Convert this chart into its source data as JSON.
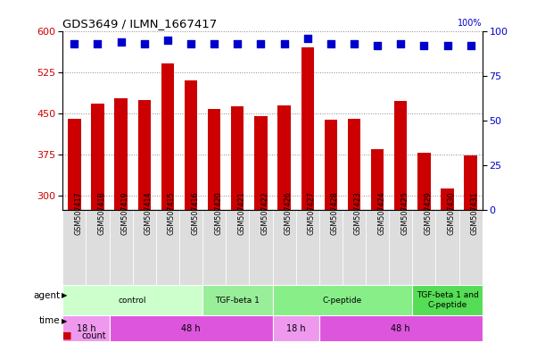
{
  "title": "GDS3649 / ILMN_1667417",
  "samples": [
    "GSM507417",
    "GSM507418",
    "GSM507419",
    "GSM507414",
    "GSM507415",
    "GSM507416",
    "GSM507420",
    "GSM507421",
    "GSM507422",
    "GSM507426",
    "GSM507427",
    "GSM507428",
    "GSM507423",
    "GSM507424",
    "GSM507425",
    "GSM507429",
    "GSM507430",
    "GSM507431"
  ],
  "counts": [
    440,
    468,
    478,
    475,
    540,
    510,
    458,
    463,
    445,
    465,
    570,
    438,
    440,
    385,
    472,
    378,
    313,
    373
  ],
  "percentile_ranks": [
    93,
    93,
    94,
    93,
    95,
    93,
    93,
    93,
    93,
    93,
    96,
    93,
    93,
    92,
    93,
    92,
    92,
    92
  ],
  "ylim_left": [
    275,
    600
  ],
  "ylim_right": [
    0,
    100
  ],
  "yticks_left": [
    300,
    375,
    450,
    525,
    600
  ],
  "yticks_right": [
    0,
    25,
    50,
    75,
    100
  ],
  "bar_color": "#CC0000",
  "dot_color": "#0000CC",
  "agent_groups": [
    {
      "label": "control",
      "start": 0,
      "end": 6,
      "color": "#CCFFCC"
    },
    {
      "label": "TGF-beta 1",
      "start": 6,
      "end": 9,
      "color": "#99EE99"
    },
    {
      "label": "C-peptide",
      "start": 9,
      "end": 15,
      "color": "#88EE88"
    },
    {
      "label": "TGF-beta 1 and\nC-peptide",
      "start": 15,
      "end": 18,
      "color": "#55DD55"
    }
  ],
  "time_groups": [
    {
      "label": "18 h",
      "start": 0,
      "end": 2,
      "color": "#EE99EE"
    },
    {
      "label": "48 h",
      "start": 2,
      "end": 9,
      "color": "#DD55DD"
    },
    {
      "label": "18 h",
      "start": 9,
      "end": 11,
      "color": "#EE99EE"
    },
    {
      "label": "48 h",
      "start": 11,
      "end": 18,
      "color": "#DD55DD"
    }
  ],
  "bar_width": 0.55,
  "dot_size": 35,
  "tick_label_fontsize": 6.5,
  "grid_color": "#888888",
  "xlabel_bg_color": "#DDDDDD"
}
